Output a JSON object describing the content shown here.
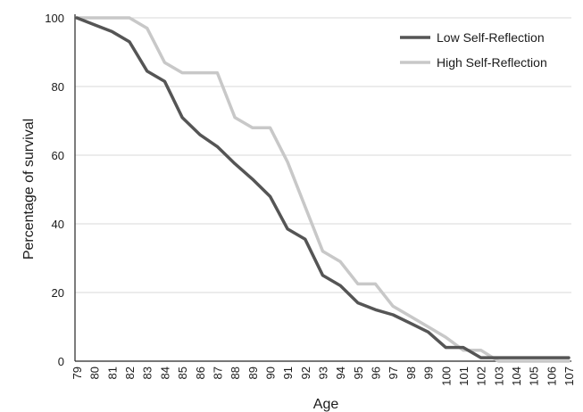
{
  "chart_data": {
    "type": "line",
    "title": "",
    "xlabel": "Age",
    "ylabel": "Percentage of survival",
    "categories": [
      "79",
      "80",
      "81",
      "82",
      "83",
      "84",
      "85",
      "86",
      "87",
      "88",
      "89",
      "90",
      "91",
      "92",
      "93",
      "94",
      "95",
      "96",
      "97",
      "98",
      "99",
      "100",
      "101",
      "102",
      "103",
      "104",
      "105",
      "106",
      "107"
    ],
    "ylim": [
      0,
      100
    ],
    "yticks": [
      "0",
      "20",
      "40",
      "60",
      "80",
      "100"
    ],
    "grid": "horizontal",
    "legend_position": "top-right",
    "series": [
      {
        "name": "Low Self-Reflection",
        "color": "#555555",
        "values": [
          100,
          98,
          96,
          93,
          84.5,
          81.5,
          71,
          66,
          62.5,
          57.5,
          53,
          48,
          38.5,
          35.5,
          25,
          22,
          17,
          15,
          13.5,
          11,
          8.5,
          4,
          4,
          1,
          1,
          1,
          1,
          1,
          1
        ]
      },
      {
        "name": "High Self-Reflection",
        "color": "#c8c8c8",
        "values": [
          100,
          100,
          100,
          100,
          97,
          87,
          84,
          84,
          84,
          71,
          68,
          68,
          58,
          45,
          32,
          29,
          22.5,
          22.5,
          16,
          13,
          10,
          7,
          3.2,
          3.2,
          0,
          0,
          0,
          0,
          0
        ]
      }
    ]
  }
}
